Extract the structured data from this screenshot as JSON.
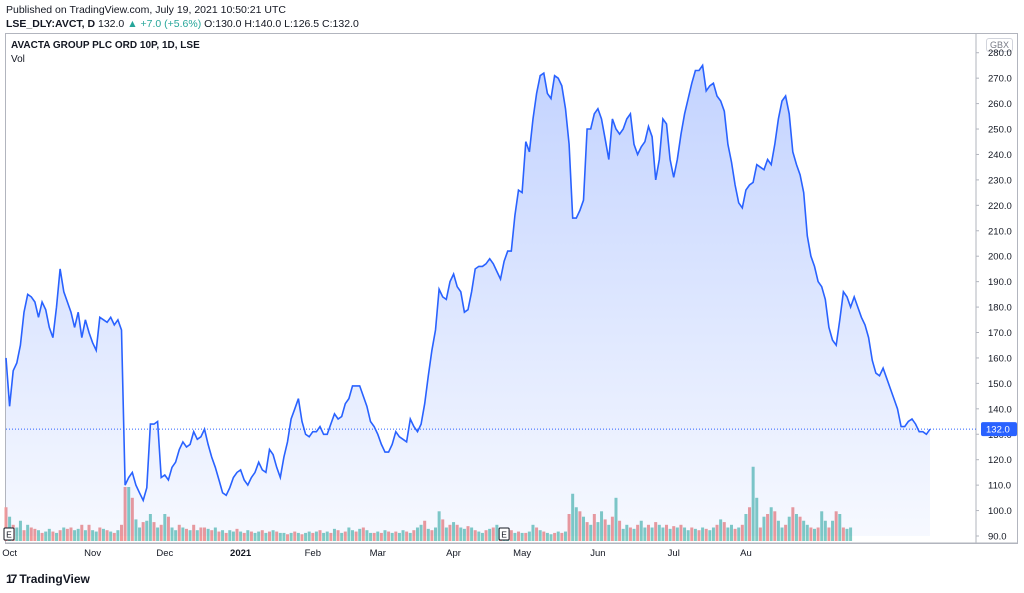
{
  "header": {
    "published": "Published on TradingView.com, July 19, 2021 10:50:21 UTC",
    "symbol": "LSE_DLY:AVCT, D",
    "last": "132.0",
    "change": "▲ +7.0 (+5.6%)",
    "ohlc_text": "O:130.0 H:140.0 L:126.5 C:132.0"
  },
  "legend": {
    "title": "AVACTA GROUP PLC ORD 10P, 1D, LSE",
    "vol": "Vol",
    "currency": "GBX"
  },
  "footer": {
    "logo": "TradingView",
    "logo_mark": "17"
  },
  "colors": {
    "line": "#2962ff",
    "fill": "#2962ff",
    "vol_up": "#80cbc4",
    "vol_down": "#ef9a9a",
    "price_label": "#2962ff"
  },
  "chart_data": {
    "type": "area",
    "title": "AVACTA GROUP PLC ORD 10P, 1D, LSE",
    "ylabel": "GBX",
    "ylim": [
      90,
      285
    ],
    "y_ticks": [
      90,
      100,
      110,
      120,
      130,
      140,
      150,
      160,
      170,
      180,
      190,
      200,
      210,
      220,
      230,
      240,
      250,
      260,
      270,
      280
    ],
    "x_labels": [
      "Oct",
      "Nov",
      "Dec",
      "2021",
      "Feb",
      "Mar",
      "Apr",
      "May",
      "Jun",
      "Jul",
      "Au"
    ],
    "x_label_index": [
      1,
      24,
      44,
      65,
      85,
      103,
      124,
      143,
      164,
      185,
      205
    ],
    "last_price": 132.0,
    "last_price_label": "132.0",
    "event_markers": [
      {
        "index": 0,
        "label": "E"
      },
      {
        "index": 138,
        "label": "E"
      }
    ],
    "series": [
      {
        "values": [
          160,
          141,
          155,
          158,
          165,
          178,
          185,
          184,
          182,
          176,
          182,
          179,
          172,
          168,
          180,
          195,
          186,
          182,
          178,
          172,
          178,
          168,
          175,
          170,
          166,
          163,
          176,
          175,
          174,
          176,
          173,
          175,
          171,
          110,
          113,
          115,
          110,
          107,
          104,
          109,
          134,
          134,
          135,
          113,
          114,
          112,
          117,
          119,
          124,
          127,
          125,
          126,
          131,
          128,
          129,
          132,
          126,
          121,
          117,
          112,
          107,
          106,
          109,
          113,
          115,
          116,
          112,
          110,
          113,
          115,
          119,
          116,
          115,
          124,
          122,
          117,
          113,
          121,
          127,
          136,
          140,
          144,
          135,
          130,
          129,
          131,
          131,
          133,
          130,
          130,
          134,
          138,
          136,
          137,
          142,
          144,
          149,
          149,
          149,
          145,
          141,
          135,
          133,
          130,
          126,
          123,
          123,
          126,
          131,
          129,
          128,
          127,
          136,
          133,
          131,
          134,
          142,
          153,
          163,
          171,
          187,
          184,
          183,
          190,
          193,
          188,
          186,
          178,
          179,
          186,
          195,
          196,
          196,
          197,
          199,
          197,
          194,
          191,
          198,
          202,
          202,
          216,
          226,
          225,
          245,
          241,
          254,
          264,
          271,
          272,
          264,
          262,
          271,
          270,
          267,
          258,
          244,
          215,
          215,
          218,
          222,
          250,
          250,
          256,
          258,
          254,
          246,
          238,
          254,
          250,
          248,
          250,
          254,
          256,
          244,
          240,
          243,
          245,
          251,
          247,
          230,
          238,
          254,
          252,
          238,
          231,
          238,
          248,
          256,
          262,
          268,
          273,
          273,
          275,
          265,
          267,
          268,
          263,
          261,
          257,
          244,
          237,
          228,
          221,
          219,
          226,
          228,
          229,
          236,
          235,
          234,
          238,
          236,
          244,
          254,
          261,
          263,
          256,
          241,
          236,
          232,
          225,
          208,
          200,
          196,
          190,
          188,
          183,
          172,
          167,
          165,
          175,
          186,
          184,
          180,
          184,
          180,
          176,
          173,
          168,
          159,
          154,
          153,
          156,
          152,
          148,
          144,
          140,
          133,
          133,
          135,
          136,
          134,
          131,
          131,
          130,
          132
        ]
      }
    ],
    "volume": {
      "up": [
        0,
        1,
        0,
        1,
        1,
        0,
        1,
        0,
        0,
        1,
        0,
        1,
        1,
        0,
        1,
        0,
        1,
        0,
        0,
        1,
        1,
        0,
        1,
        0,
        1,
        1,
        0,
        1,
        0,
        1,
        0,
        1,
        0,
        0,
        1,
        0,
        1,
        1,
        0,
        1,
        1,
        0,
        1,
        0,
        1,
        0,
        1,
        1,
        0,
        1,
        0,
        1,
        0,
        1,
        0,
        0,
        1,
        0,
        1,
        0,
        1,
        0,
        1,
        1,
        0,
        1,
        0,
        1,
        0,
        1,
        1,
        0,
        1,
        0,
        1,
        0,
        1,
        1,
        0,
        1,
        0,
        1,
        0,
        1,
        1,
        0,
        1,
        0,
        1,
        1,
        0,
        1,
        0,
        1,
        0,
        1,
        1,
        0,
        1,
        0,
        1,
        1,
        0,
        1,
        0,
        1,
        0,
        1,
        0,
        1,
        1,
        0,
        1,
        0,
        1,
        1,
        0,
        1,
        0,
        1,
        1,
        0,
        1,
        0,
        1,
        0,
        1,
        1,
        0,
        1,
        0,
        1,
        1,
        0,
        1,
        0,
        1,
        0,
        1,
        1,
        0,
        1,
        0,
        1,
        0,
        1,
        1,
        0,
        1,
        0,
        1,
        1,
        0,
        1,
        0,
        1,
        0,
        1,
        1,
        0,
        1,
        0,
        1,
        0,
        1,
        1,
        0,
        1,
        0,
        1,
        0,
        1,
        1,
        0,
        1,
        0,
        1,
        1,
        0,
        1,
        0,
        1,
        1,
        0,
        1,
        0,
        1,
        0,
        1,
        1,
        0,
        1,
        0,
        1,
        0,
        1,
        1,
        0,
        1,
        0,
        1,
        1,
        0,
        1,
        0,
        1,
        0,
        1,
        1,
        0,
        1,
        0,
        1,
        0,
        1,
        1,
        0,
        1,
        0,
        1,
        0,
        1,
        1,
        0,
        1,
        0,
        1,
        1,
        0,
        1,
        0,
        1,
        0,
        1,
        1,
        0,
        1,
        0,
        1,
        0,
        1,
        1,
        0,
        1,
        0,
        1,
        0,
        1,
        1,
        0,
        1
      ],
      "height": [
        0.25,
        0.18,
        0.12,
        0.1,
        0.15,
        0.08,
        0.12,
        0.1,
        0.09,
        0.08,
        0.06,
        0.07,
        0.09,
        0.07,
        0.06,
        0.08,
        0.1,
        0.09,
        0.1,
        0.08,
        0.09,
        0.12,
        0.08,
        0.12,
        0.08,
        0.07,
        0.1,
        0.09,
        0.08,
        0.07,
        0.06,
        0.08,
        0.12,
        0.4,
        0.4,
        0.32,
        0.16,
        0.1,
        0.14,
        0.15,
        0.2,
        0.14,
        0.1,
        0.12,
        0.2,
        0.18,
        0.1,
        0.08,
        0.12,
        0.1,
        0.09,
        0.08,
        0.12,
        0.08,
        0.1,
        0.1,
        0.09,
        0.08,
        0.1,
        0.07,
        0.08,
        0.06,
        0.08,
        0.07,
        0.09,
        0.07,
        0.06,
        0.08,
        0.07,
        0.06,
        0.07,
        0.08,
        0.06,
        0.07,
        0.08,
        0.07,
        0.06,
        0.06,
        0.05,
        0.06,
        0.07,
        0.06,
        0.05,
        0.06,
        0.07,
        0.06,
        0.07,
        0.08,
        0.06,
        0.07,
        0.06,
        0.09,
        0.08,
        0.06,
        0.07,
        0.1,
        0.08,
        0.07,
        0.09,
        0.1,
        0.08,
        0.06,
        0.06,
        0.07,
        0.06,
        0.08,
        0.07,
        0.06,
        0.07,
        0.06,
        0.08,
        0.07,
        0.06,
        0.08,
        0.1,
        0.12,
        0.15,
        0.09,
        0.08,
        0.1,
        0.22,
        0.16,
        0.1,
        0.12,
        0.14,
        0.12,
        0.1,
        0.09,
        0.11,
        0.1,
        0.08,
        0.07,
        0.06,
        0.08,
        0.09,
        0.1,
        0.12,
        0.1,
        0.09,
        0.07,
        0.08,
        0.06,
        0.07,
        0.06,
        0.06,
        0.07,
        0.12,
        0.1,
        0.08,
        0.07,
        0.06,
        0.05,
        0.06,
        0.07,
        0.06,
        0.07,
        0.2,
        0.35,
        0.25,
        0.22,
        0.18,
        0.14,
        0.12,
        0.2,
        0.14,
        0.22,
        0.16,
        0.12,
        0.18,
        0.32,
        0.15,
        0.09,
        0.12,
        0.1,
        0.09,
        0.12,
        0.15,
        0.1,
        0.12,
        0.1,
        0.14,
        0.12,
        0.1,
        0.12,
        0.09,
        0.11,
        0.1,
        0.12,
        0.1,
        0.08,
        0.1,
        0.09,
        0.08,
        0.1,
        0.09,
        0.08,
        0.1,
        0.12,
        0.16,
        0.14,
        0.1,
        0.12,
        0.09,
        0.1,
        0.12,
        0.2,
        0.25,
        0.55,
        0.32,
        0.1,
        0.18,
        0.2,
        0.25,
        0.22,
        0.15,
        0.1,
        0.12,
        0.18,
        0.25,
        0.2,
        0.18,
        0.15,
        0.12,
        0.1,
        0.09,
        0.1,
        0.22,
        0.15,
        0.1,
        0.15,
        0.22,
        0.2,
        0.1,
        0.09,
        0.1
      ]
    }
  }
}
